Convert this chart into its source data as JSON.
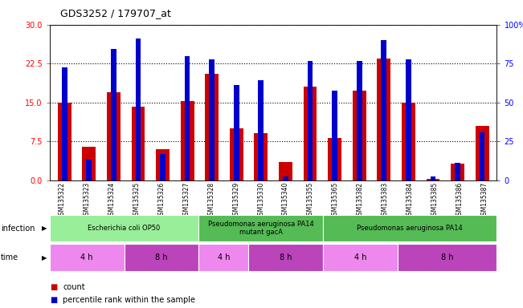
{
  "title": "GDS3252 / 179707_at",
  "samples": [
    "GSM135322",
    "GSM135323",
    "GSM135324",
    "GSM135325",
    "GSM135326",
    "GSM135327",
    "GSM135328",
    "GSM135329",
    "GSM135330",
    "GSM135340",
    "GSM135355",
    "GSM135365",
    "GSM135382",
    "GSM135383",
    "GSM135384",
    "GSM135385",
    "GSM135386",
    "GSM135387"
  ],
  "count_values": [
    15.0,
    6.5,
    17.0,
    14.2,
    6.0,
    15.2,
    20.5,
    10.0,
    9.0,
    3.5,
    18.0,
    8.2,
    17.2,
    23.5,
    15.0,
    0.3,
    3.2,
    10.5
  ],
  "percentile_values": [
    21.7,
    4.0,
    25.3,
    27.3,
    5.0,
    24.0,
    23.3,
    18.3,
    19.3,
    0.7,
    23.0,
    17.3,
    23.0,
    27.0,
    23.3,
    0.7,
    3.3,
    9.3
  ],
  "ylim_left": [
    0,
    30
  ],
  "ylim_right": [
    0,
    100
  ],
  "yticks_left": [
    0,
    7.5,
    15,
    22.5,
    30
  ],
  "yticks_right": [
    0,
    25,
    50,
    75,
    100
  ],
  "bar_color": "#cc0000",
  "percentile_color": "#0000cc",
  "plot_bg": "#ffffff",
  "xtick_bg": "#d3d3d3",
  "infection_groups": [
    {
      "label": "Escherichia coli OP50",
      "start": 0,
      "end": 6,
      "color": "#99ee99"
    },
    {
      "label": "Pseudomonas aeruginosa PA14\nmutant gacA",
      "start": 6,
      "end": 11,
      "color": "#55bb55"
    },
    {
      "label": "Pseudomonas aeruginosa PA14",
      "start": 11,
      "end": 18,
      "color": "#55bb55"
    }
  ],
  "time_groups": [
    {
      "label": "4 h",
      "start": 0,
      "end": 3,
      "color": "#ee88ee"
    },
    {
      "label": "8 h",
      "start": 3,
      "end": 6,
      "color": "#bb44bb"
    },
    {
      "label": "4 h",
      "start": 6,
      "end": 8,
      "color": "#ee88ee"
    },
    {
      "label": "8 h",
      "start": 8,
      "end": 11,
      "color": "#bb44bb"
    },
    {
      "label": "4 h",
      "start": 11,
      "end": 14,
      "color": "#ee88ee"
    },
    {
      "label": "8 h",
      "start": 14,
      "end": 18,
      "color": "#bb44bb"
    }
  ],
  "legend_count_label": "count",
  "legend_percentile_label": "percentile rank within the sample",
  "bar_width": 0.55
}
